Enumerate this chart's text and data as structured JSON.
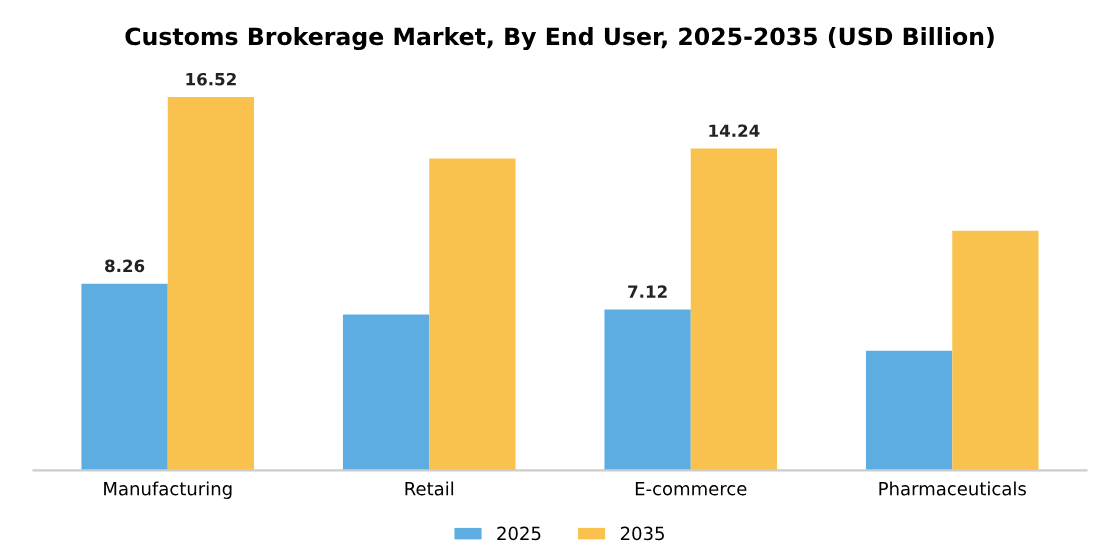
{
  "chart_data": {
    "type": "bar",
    "title": "Customs Brokerage Market, By End User, 2025-2035 (USD Billion)",
    "categories": [
      "Manufacturing",
      "Retail",
      "E-commerce",
      "Pharmaceuticals"
    ],
    "series": [
      {
        "name": "2025",
        "color": "#5dade2",
        "values": [
          8.26,
          6.9,
          7.12,
          5.3
        ],
        "value_labels": [
          "8.26",
          null,
          "7.12",
          null
        ]
      },
      {
        "name": "2035",
        "color": "#f9c24e",
        "values": [
          16.52,
          13.8,
          14.24,
          10.6
        ],
        "value_labels": [
          "16.52",
          null,
          "14.24",
          null
        ]
      }
    ],
    "legend": "bottom",
    "grid": false
  }
}
